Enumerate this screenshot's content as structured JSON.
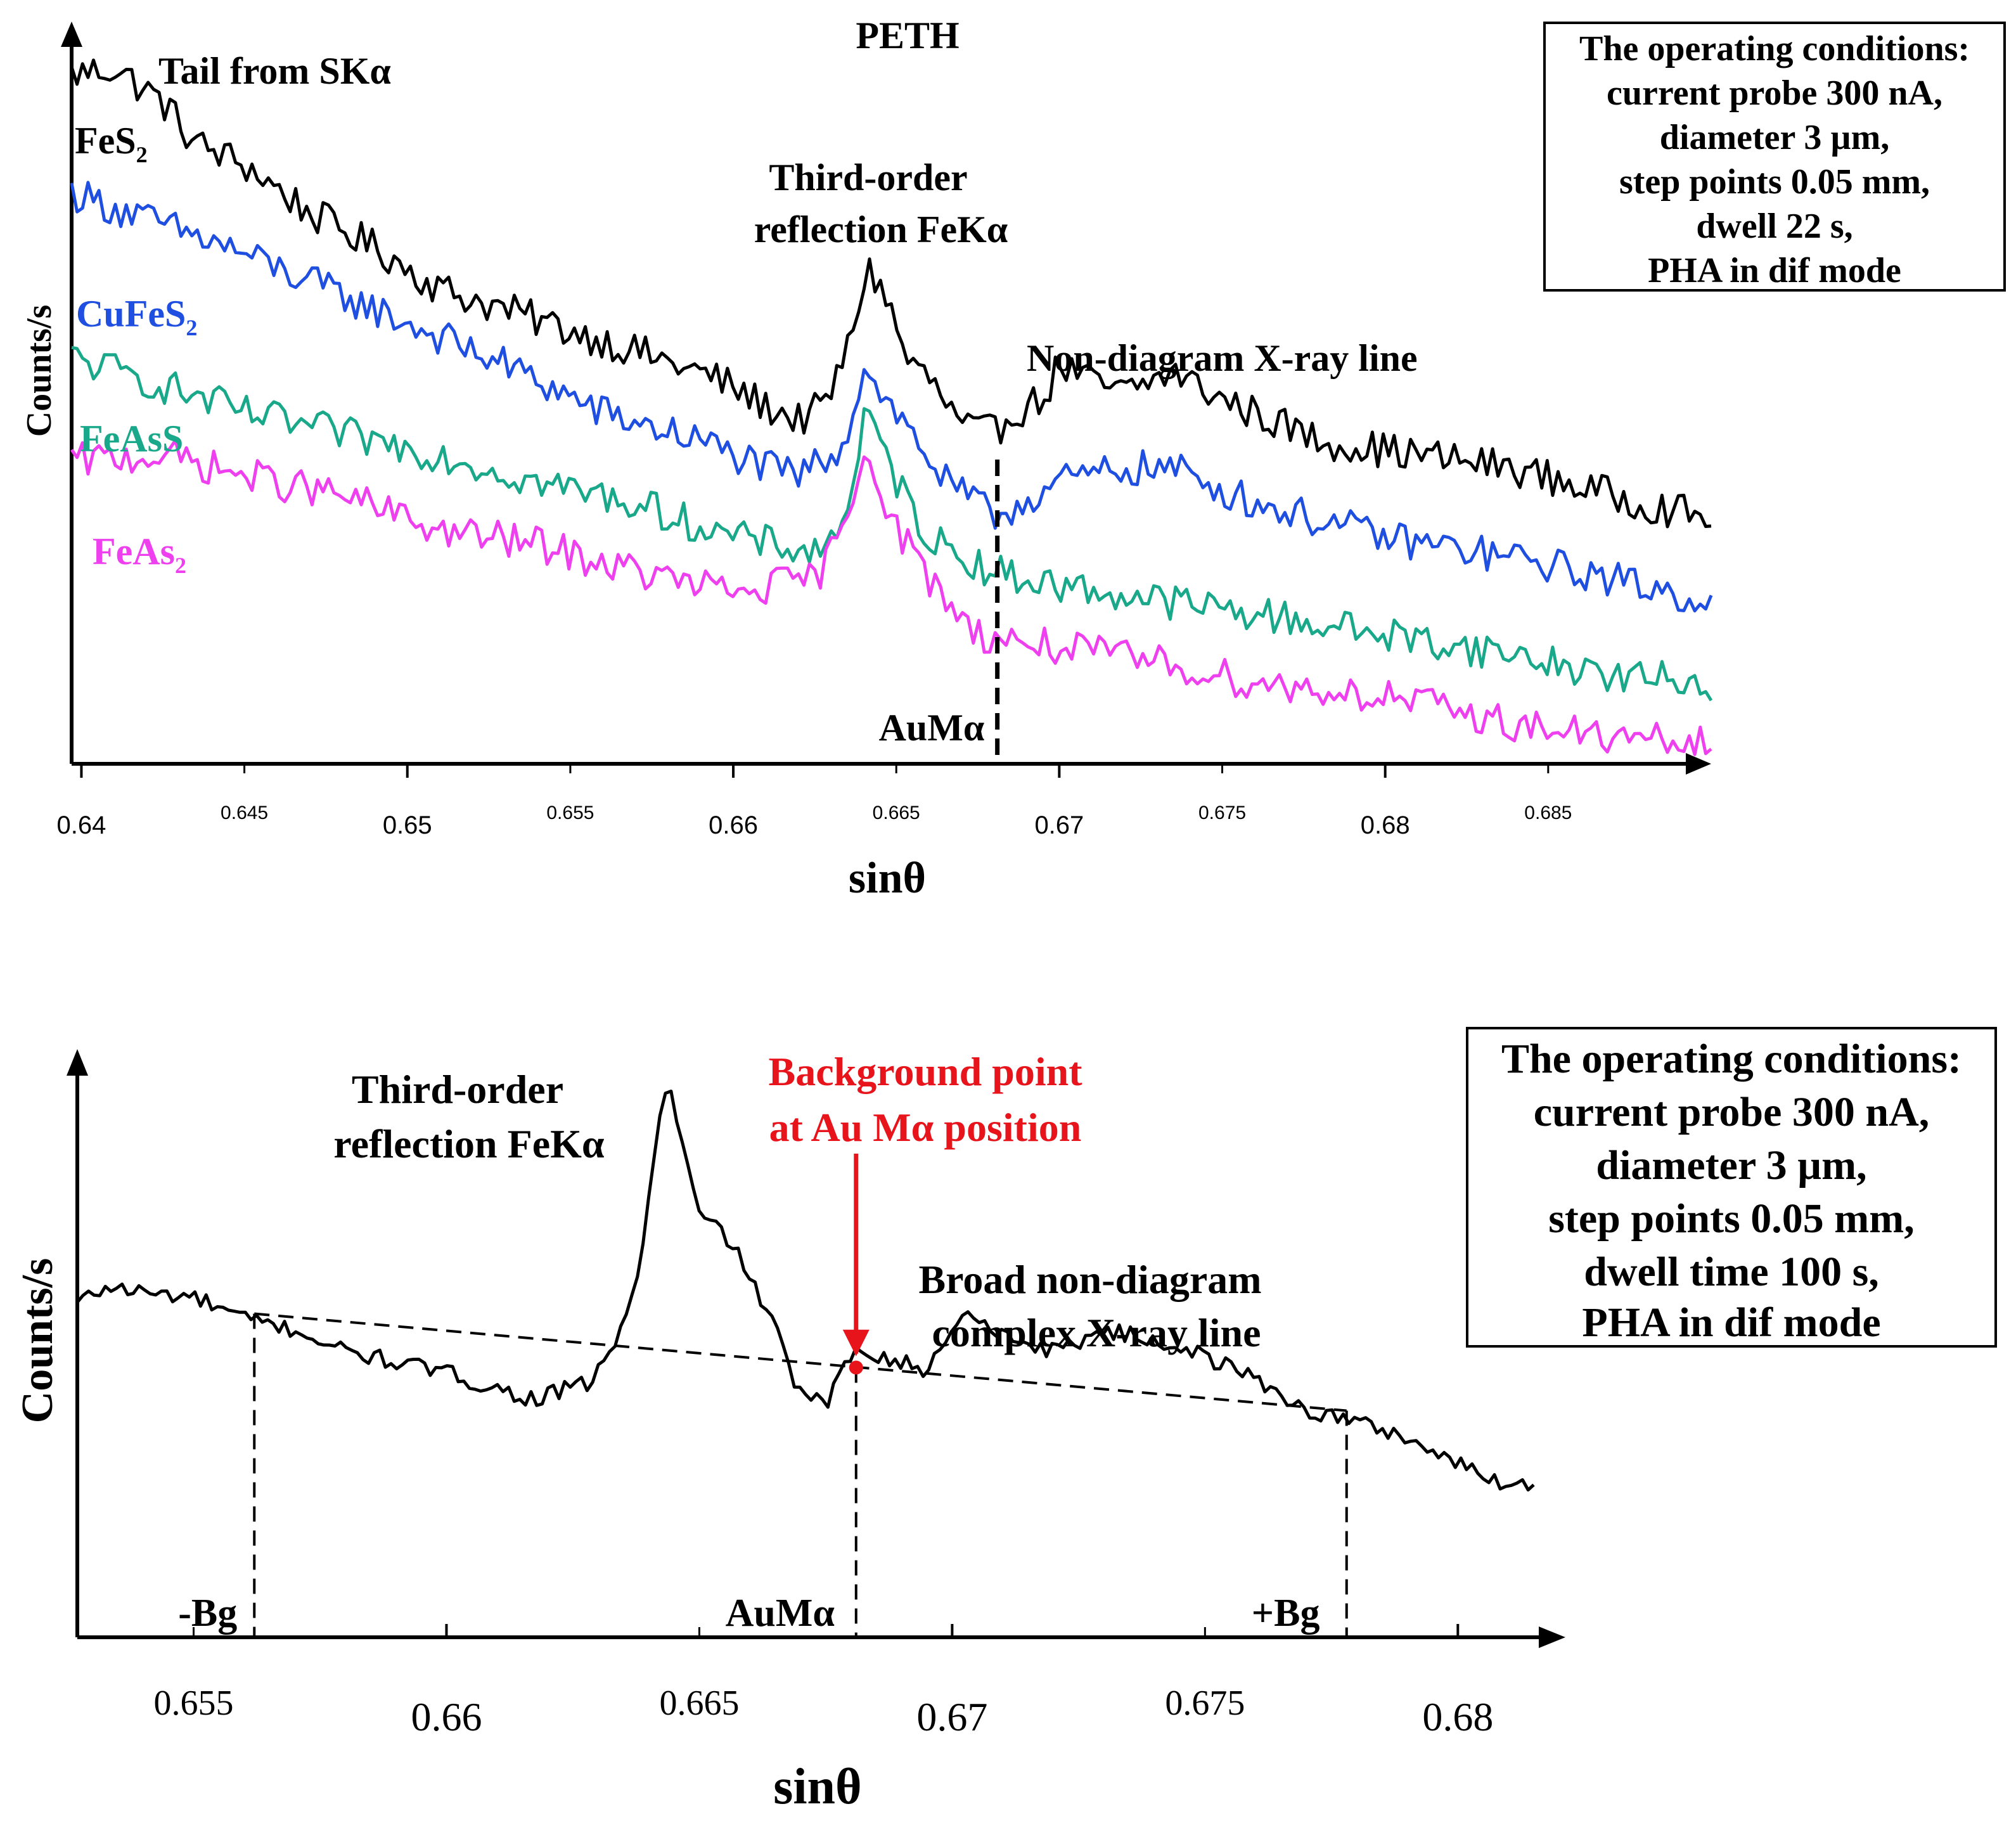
{
  "chart_data": [
    {
      "type": "line",
      "title": "PETH",
      "xlabel": "sinθ",
      "ylabel": "Counts/s",
      "xlim": [
        0.6397,
        0.69
      ],
      "ylim": [
        0,
        100
      ],
      "x_ticks_major": [
        "0.64",
        "0.65",
        "0.66",
        "0.67",
        "0.68"
      ],
      "x_ticks_minor": [
        "0.645",
        "0.655",
        "0.665",
        "0.675",
        "0.685"
      ],
      "noise": 2.6,
      "series": [
        {
          "name": "FeS2",
          "label_main": "FeS",
          "label_sub": "2",
          "color": "#000000",
          "label_color": "#000000",
          "points": [
            [
              0.6397,
              97
            ],
            [
              0.641,
              98
            ],
            [
              0.6425,
              93
            ],
            [
              0.6435,
              87
            ],
            [
              0.645,
              84
            ],
            [
              0.647,
              77
            ],
            [
              0.649,
              72
            ],
            [
              0.651,
              66
            ],
            [
              0.653,
              63
            ],
            [
              0.655,
              60
            ],
            [
              0.657,
              57
            ],
            [
              0.6595,
              53
            ],
            [
              0.661,
              49
            ],
            [
              0.662,
              47
            ],
            [
              0.6628,
              49
            ],
            [
              0.6635,
              57
            ],
            [
              0.6641,
              69
            ],
            [
              0.6646,
              66
            ],
            [
              0.6653,
              56
            ],
            [
              0.666,
              53
            ],
            [
              0.667,
              46
            ],
            [
              0.668,
              45
            ],
            [
              0.6685,
              48
            ],
            [
              0.6695,
              50
            ],
            [
              0.67,
              55
            ],
            [
              0.6712,
              52
            ],
            [
              0.672,
              51
            ],
            [
              0.6735,
              54
            ],
            [
              0.675,
              50
            ],
            [
              0.678,
              44
            ],
            [
              0.681,
              42
            ],
            [
              0.684,
              40
            ],
            [
              0.687,
              36
            ],
            [
              0.6897,
              33
            ]
          ]
        },
        {
          "name": "CuFeS2",
          "label_main": "CuFeS",
          "label_sub": "2",
          "color": "#1f4fe0",
          "label_color": "#1f4fe0",
          "points": [
            [
              0.6397,
              80
            ],
            [
              0.642,
              76
            ],
            [
              0.6445,
              72
            ],
            [
              0.647,
              67
            ],
            [
              0.65,
              61
            ],
            [
              0.653,
              55
            ],
            [
              0.656,
              48
            ],
            [
              0.659,
              44
            ],
            [
              0.661,
              40
            ],
            [
              0.662,
              39
            ],
            [
              0.6633,
              43
            ],
            [
              0.6641,
              55
            ],
            [
              0.6648,
              49
            ],
            [
              0.6655,
              45
            ],
            [
              0.6665,
              38
            ],
            [
              0.668,
              33
            ],
            [
              0.67,
              38
            ],
            [
              0.672,
              40
            ],
            [
              0.6735,
              40
            ],
            [
              0.676,
              35
            ],
            [
              0.68,
              30
            ],
            [
              0.684,
              27
            ],
            [
              0.687,
              24
            ],
            [
              0.6897,
              21
            ]
          ]
        },
        {
          "name": "FeAsS",
          "label_main": "FeAsS",
          "label_sub": "",
          "color": "#1aa88a",
          "label_color": "#1aa88a",
          "points": [
            [
              0.6397,
              56
            ],
            [
              0.6425,
              52
            ],
            [
              0.645,
              48
            ],
            [
              0.648,
              45
            ],
            [
              0.651,
              42
            ],
            [
              0.654,
              38
            ],
            [
              0.657,
              35
            ],
            [
              0.66,
              30
            ],
            [
              0.6625,
              28
            ],
            [
              0.6633,
              31
            ],
            [
              0.6641,
              48
            ],
            [
              0.6648,
              40
            ],
            [
              0.666,
              30
            ],
            [
              0.668,
              25
            ],
            [
              0.67,
              23
            ],
            [
              0.673,
              21
            ],
            [
              0.676,
              19
            ],
            [
              0.68,
              16
            ],
            [
              0.684,
              13
            ],
            [
              0.687,
              10
            ],
            [
              0.6897,
              9
            ]
          ]
        },
        {
          "name": "FeAs2",
          "label_main": "FeAs",
          "label_sub": "2",
          "color": "#ee40ee",
          "label_color": "#ee40ee",
          "points": [
            [
              0.6397,
              41
            ],
            [
              0.6425,
              42
            ],
            [
              0.645,
              39
            ],
            [
              0.648,
              36
            ],
            [
              0.651,
              31
            ],
            [
              0.654,
              29
            ],
            [
              0.657,
              25
            ],
            [
              0.66,
              22
            ],
            [
              0.6625,
              24
            ],
            [
              0.6633,
              30
            ],
            [
              0.6641,
              44
            ],
            [
              0.6648,
              33
            ],
            [
              0.666,
              24
            ],
            [
              0.6675,
              16
            ],
            [
              0.67,
              14
            ],
            [
              0.673,
              12
            ],
            [
              0.676,
              9
            ],
            [
              0.68,
              7
            ],
            [
              0.684,
              3
            ],
            [
              0.687,
              1
            ],
            [
              0.6897,
              0
            ]
          ]
        }
      ],
      "annotations": {
        "tail": "Tail from SKα",
        "peak_line1": "Third-order",
        "peak_line2": "reflection FeKα",
        "nondiagram": "Non-diagram X-ray line",
        "aumalpha": "AuMα"
      },
      "aumalpha_x": 0.6681,
      "conditions": [
        "The operating conditions:",
        "current probe 300 nA,",
        "diameter 3 µm,",
        "step points 0.05 mm,",
        "dwell 22 s,",
        "PHA in dif mode"
      ]
    },
    {
      "type": "line",
      "title": "",
      "xlabel": "sinθ",
      "ylabel": "Counts/s",
      "xlim": [
        0.6527,
        0.6815
      ],
      "ylim": [
        0,
        100
      ],
      "x_ticks_major": [
        "0.66",
        "0.67",
        "0.68"
      ],
      "x_ticks_minor": [
        "0.655",
        "0.665",
        "0.675"
      ],
      "noise": 1.6,
      "series": [
        {
          "name": "spectrum",
          "color": "#000000",
          "points": [
            [
              0.6527,
              57
            ],
            [
              0.6533,
              60
            ],
            [
              0.654,
              59
            ],
            [
              0.655,
              58
            ],
            [
              0.656,
              54
            ],
            [
              0.657,
              52
            ],
            [
              0.658,
              48
            ],
            [
              0.659,
              46
            ],
            [
              0.66,
              44
            ],
            [
              0.661,
              41
            ],
            [
              0.6618,
              39
            ],
            [
              0.662,
              40
            ],
            [
              0.6628,
              42
            ],
            [
              0.6635,
              52
            ],
            [
              0.6639,
              68
            ],
            [
              0.6642,
              92
            ],
            [
              0.6644,
              97
            ],
            [
              0.6647,
              85
            ],
            [
              0.665,
              73
            ],
            [
              0.6655,
              70
            ],
            [
              0.666,
              62
            ],
            [
              0.6665,
              52
            ],
            [
              0.667,
              40
            ],
            [
              0.6675,
              38
            ],
            [
              0.6681,
              49
            ],
            [
              0.6687,
              47
            ],
            [
              0.669,
              46
            ],
            [
              0.6695,
              44
            ],
            [
              0.67,
              53
            ],
            [
              0.6705,
              55
            ],
            [
              0.671,
              51
            ],
            [
              0.672,
              48
            ],
            [
              0.673,
              52
            ],
            [
              0.6735,
              51
            ],
            [
              0.6745,
              49
            ],
            [
              0.676,
              43
            ],
            [
              0.677,
              37
            ],
            [
              0.678,
              35
            ],
            [
              0.679,
              32
            ],
            [
              0.68,
              27
            ],
            [
              0.6808,
              24
            ],
            [
              0.6815,
              23
            ]
          ]
        }
      ],
      "bg_minus": {
        "x": 0.6562,
        "y": 55,
        "label": "-Bg"
      },
      "bg_plus": {
        "x": 0.6778,
        "y": 37,
        "label": "+Bg"
      },
      "bg_point": {
        "x": 0.6681,
        "y": 45,
        "label": "AuMα"
      },
      "annotations": {
        "peak_line1": "Third-order",
        "peak_line2": "reflection FeKα",
        "bgpoint_line1": "Background point",
        "bgpoint_line2": "at Au Mα position",
        "broad_line1": "Broad non-diagram",
        "broad_line2": "complex X-ray line"
      },
      "highlight_color": "#e8141c",
      "conditions": [
        "The operating conditions:",
        "current probe 300 nA,",
        "diameter 3 µm,",
        "step points 0.05 mm,",
        "dwell time 100 s,",
        "PHA in dif mode"
      ]
    }
  ]
}
